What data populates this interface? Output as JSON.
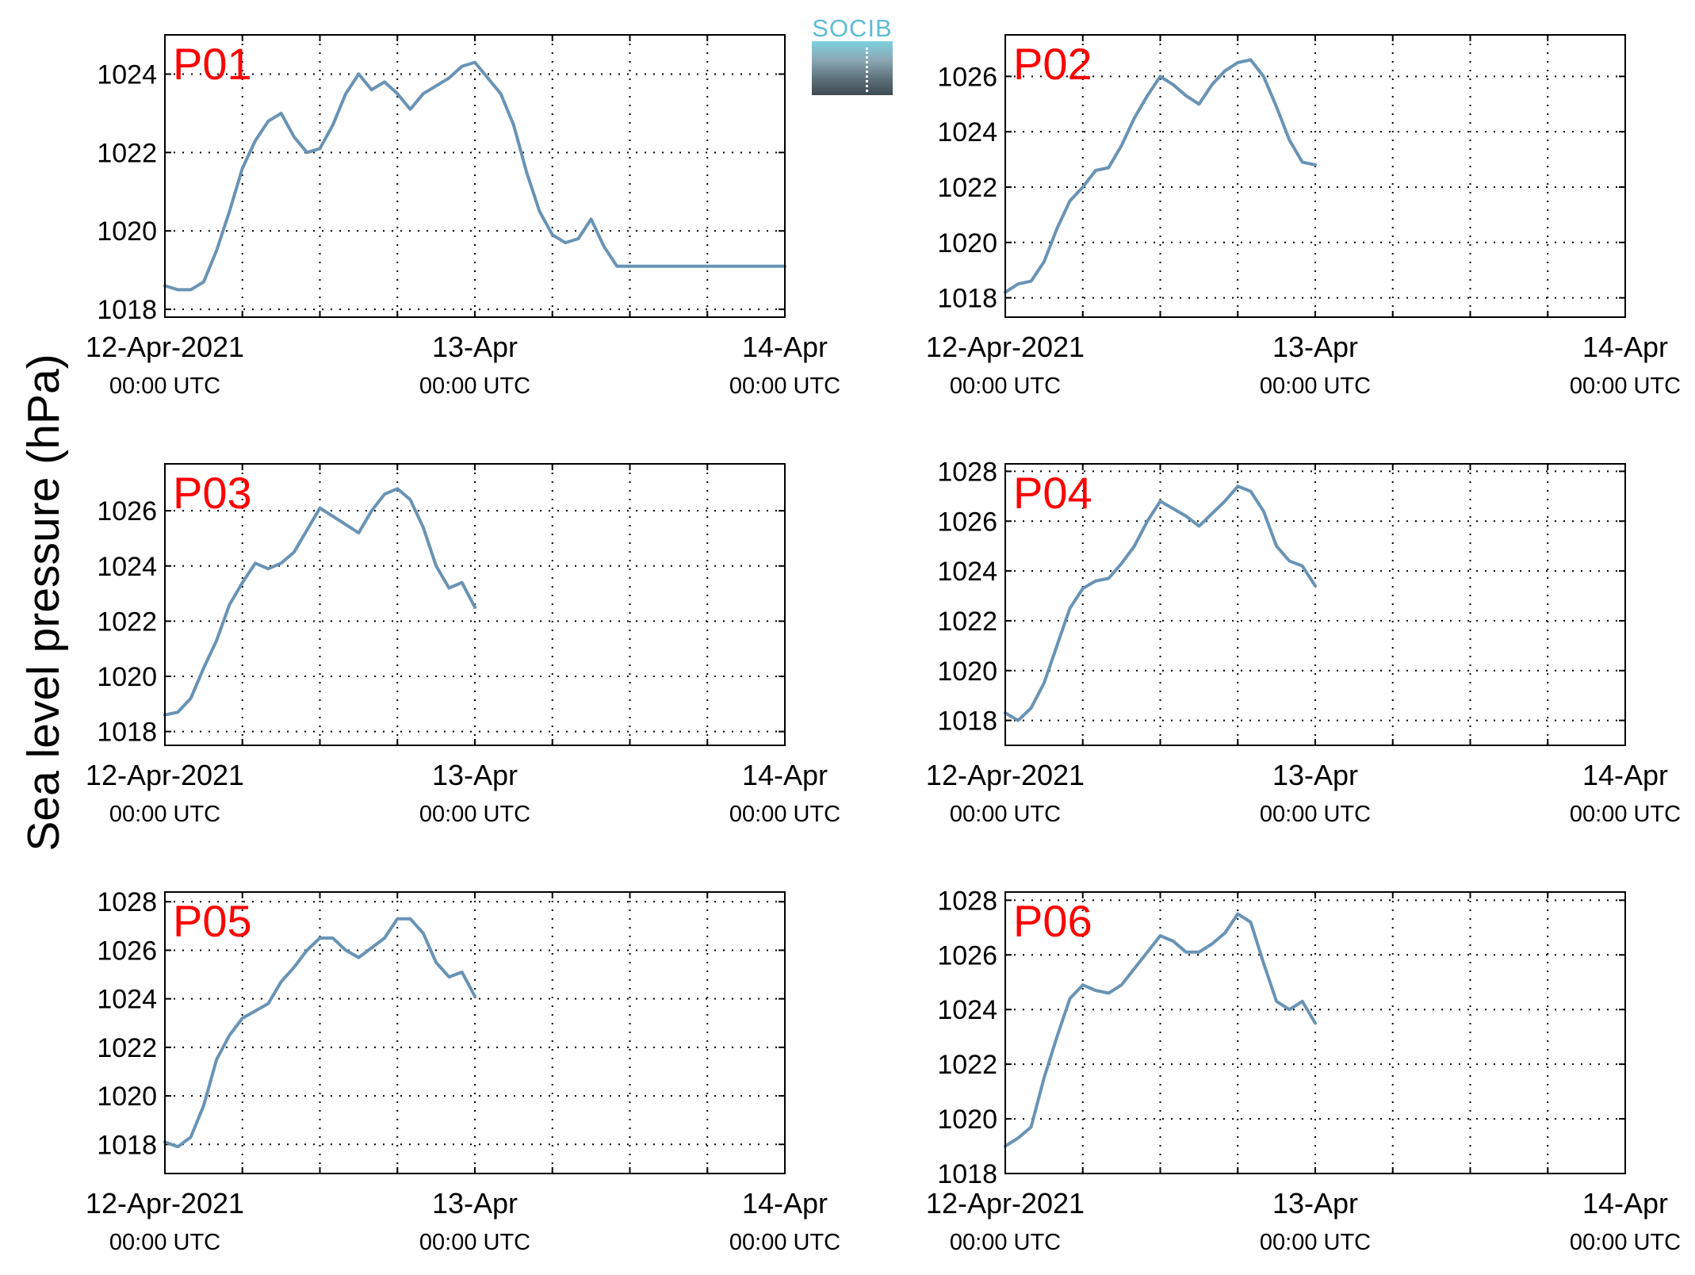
{
  "ylabel": "Sea level pressure (hPa)",
  "logo_text": "SOCIB",
  "line_color": "#6893b5",
  "label_color": "#ff0000",
  "x_ticks": [
    {
      "x": 0,
      "line1": "12-Apr-2021",
      "line2": "00:00 UTC"
    },
    {
      "x": 24,
      "line1": "13-Apr",
      "line2": "00:00 UTC"
    },
    {
      "x": 48,
      "line1": "14-Apr",
      "line2": "00:00 UTC"
    }
  ],
  "chart_data": [
    {
      "type": "line",
      "title": "P01",
      "xlim": [
        0,
        48
      ],
      "ylim": [
        1017.8,
        1025
      ],
      "yticks": [
        1018,
        1020,
        1022,
        1024
      ],
      "x": [
        0,
        1,
        2,
        3,
        4,
        5,
        6,
        7,
        8,
        9,
        10,
        11,
        12,
        13,
        14,
        15,
        16,
        17,
        18,
        19,
        20,
        21,
        22,
        23,
        24,
        25,
        26,
        27,
        28,
        29,
        30,
        31,
        32,
        33,
        34,
        35,
        36,
        37,
        38,
        39,
        40,
        41,
        42,
        43,
        44,
        45,
        46,
        47,
        48
      ],
      "y": [
        1018.6,
        1018.5,
        1018.5,
        1018.7,
        1019.5,
        1020.5,
        1021.6,
        1022.3,
        1022.8,
        1023.0,
        1022.4,
        1022.0,
        1022.1,
        1022.7,
        1023.5,
        1024.0,
        1023.6,
        1023.8,
        1023.5,
        1023.1,
        1023.5,
        1023.7,
        1023.9,
        1024.2,
        1024.3,
        1023.9,
        1023.5,
        1022.7,
        1021.5,
        1020.5,
        1019.9,
        1019.7,
        1019.8,
        1020.3,
        1019.6,
        1019.1,
        1019.1,
        1019.1,
        1019.1,
        1019.1,
        1019.1,
        1019.1,
        1019.1,
        1019.1,
        1019.1,
        1019.1,
        1019.1,
        1019.1,
        1019.1
      ]
    },
    {
      "type": "line",
      "title": "P02",
      "xlim": [
        0,
        48
      ],
      "ylim": [
        1017.3,
        1027.5
      ],
      "yticks": [
        1018,
        1020,
        1022,
        1024,
        1026
      ],
      "x": [
        0,
        1,
        2,
        3,
        4,
        5,
        6,
        7,
        8,
        9,
        10,
        11,
        12,
        13,
        14,
        15,
        16,
        17,
        18,
        19,
        20,
        21,
        22,
        23,
        24
      ],
      "y": [
        1018.2,
        1018.5,
        1018.6,
        1019.3,
        1020.5,
        1021.5,
        1022.0,
        1022.6,
        1022.7,
        1023.5,
        1024.5,
        1025.3,
        1026.0,
        1025.7,
        1025.3,
        1025.0,
        1025.7,
        1026.2,
        1026.5,
        1026.6,
        1026.0,
        1024.9,
        1023.7,
        1022.9,
        1022.8
      ]
    },
    {
      "type": "line",
      "title": "P03",
      "xlim": [
        0,
        48
      ],
      "ylim": [
        1017.5,
        1027.7
      ],
      "yticks": [
        1018,
        1020,
        1022,
        1024,
        1026
      ],
      "x": [
        0,
        1,
        2,
        3,
        4,
        5,
        6,
        7,
        8,
        9,
        10,
        11,
        12,
        13,
        14,
        15,
        16,
        17,
        18,
        19,
        20,
        21,
        22,
        23,
        24
      ],
      "y": [
        1018.6,
        1018.7,
        1019.2,
        1020.3,
        1021.3,
        1022.6,
        1023.4,
        1024.1,
        1023.9,
        1024.1,
        1024.5,
        1025.3,
        1026.1,
        1025.8,
        1025.5,
        1025.2,
        1026.0,
        1026.6,
        1026.8,
        1026.4,
        1025.4,
        1024.0,
        1023.2,
        1023.4,
        1022.5
      ]
    },
    {
      "type": "line",
      "title": "P04",
      "xlim": [
        0,
        48
      ],
      "ylim": [
        1017.0,
        1028.3
      ],
      "yticks": [
        1018,
        1020,
        1022,
        1024,
        1026,
        1028
      ],
      "x": [
        0,
        1,
        2,
        3,
        4,
        5,
        6,
        7,
        8,
        9,
        10,
        11,
        12,
        13,
        14,
        15,
        16,
        17,
        18,
        19,
        20,
        21,
        22,
        23,
        24
      ],
      "y": [
        1018.3,
        1018.0,
        1018.5,
        1019.5,
        1021.0,
        1022.5,
        1023.3,
        1023.6,
        1023.7,
        1024.3,
        1025.0,
        1026.0,
        1026.8,
        1026.5,
        1026.2,
        1025.8,
        1026.3,
        1026.8,
        1027.4,
        1027.2,
        1026.4,
        1025.0,
        1024.4,
        1024.2,
        1023.4
      ]
    },
    {
      "type": "line",
      "title": "P05",
      "xlim": [
        0,
        48
      ],
      "ylim": [
        1016.8,
        1028.4
      ],
      "yticks": [
        1018,
        1020,
        1022,
        1024,
        1026,
        1028
      ],
      "x": [
        0,
        1,
        2,
        3,
        4,
        5,
        6,
        7,
        8,
        9,
        10,
        11,
        12,
        13,
        14,
        15,
        16,
        17,
        18,
        19,
        20,
        21,
        22,
        23,
        24
      ],
      "y": [
        1018.1,
        1017.9,
        1018.3,
        1019.6,
        1021.5,
        1022.5,
        1023.2,
        1023.5,
        1023.8,
        1024.7,
        1025.3,
        1026.0,
        1026.5,
        1026.5,
        1026.0,
        1025.7,
        1026.1,
        1026.5,
        1027.3,
        1027.3,
        1026.7,
        1025.5,
        1024.9,
        1025.1,
        1024.1
      ]
    },
    {
      "type": "line",
      "title": "P06",
      "xlim": [
        0,
        48
      ],
      "ylim": [
        1018.0,
        1028.3
      ],
      "yticks": [
        1018,
        1020,
        1022,
        1024,
        1026,
        1028
      ],
      "x": [
        0,
        1,
        2,
        3,
        4,
        5,
        6,
        7,
        8,
        9,
        10,
        11,
        12,
        13,
        14,
        15,
        16,
        17,
        18,
        19,
        20,
        21,
        22,
        23,
        24
      ],
      "y": [
        1019.0,
        1019.3,
        1019.7,
        1021.5,
        1023.0,
        1024.4,
        1024.9,
        1024.7,
        1024.6,
        1024.9,
        1025.5,
        1026.1,
        1026.7,
        1026.5,
        1026.1,
        1026.1,
        1026.4,
        1026.8,
        1027.5,
        1027.2,
        1025.7,
        1024.3,
        1024.0,
        1024.3,
        1023.5
      ]
    }
  ]
}
